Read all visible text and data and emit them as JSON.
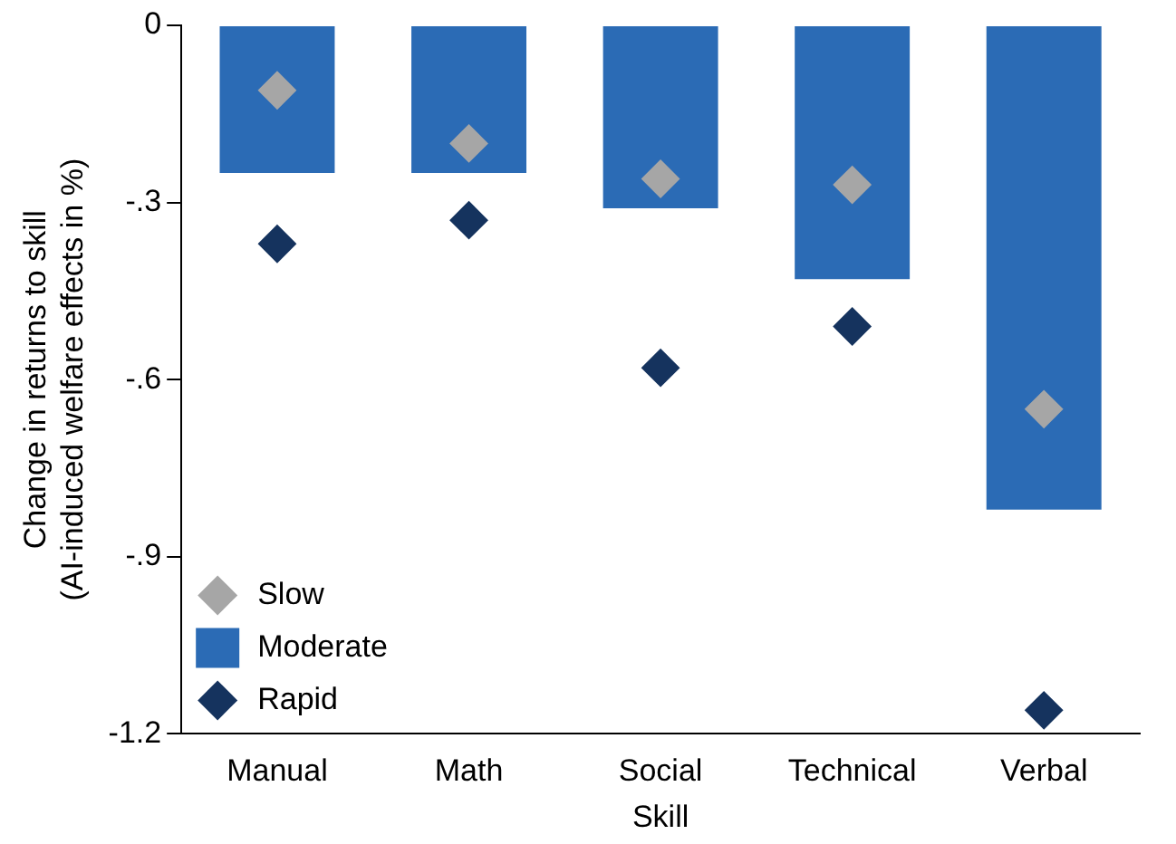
{
  "chart_data": {
    "type": "bar",
    "xlabel": "Skill",
    "ylabel": "Change in returns to skill\n(AI-induced welfare effects in %)",
    "categories": [
      "Manual",
      "Math",
      "Social",
      "Technical",
      "Verbal"
    ],
    "series": [
      {
        "name": "Slow",
        "type": "scatter",
        "color": "#a6a6a6",
        "values": [
          -0.11,
          -0.2,
          -0.26,
          -0.27,
          -0.65
        ]
      },
      {
        "name": "Moderate",
        "color": "#2b6bb5",
        "values": [
          -0.25,
          -0.25,
          -0.31,
          -0.43,
          -0.82
        ]
      },
      {
        "name": "Rapid",
        "type": "scatter",
        "color": "#15335e",
        "values": [
          -0.37,
          -0.33,
          -0.58,
          -0.51,
          -1.16
        ]
      }
    ],
    "ylim": [
      -1.2,
      0
    ],
    "yticks": [
      {
        "value": 0,
        "label": "0"
      },
      {
        "value": -0.3,
        "label": "-.3"
      },
      {
        "value": -0.6,
        "label": "-.6"
      },
      {
        "value": -0.9,
        "label": "-.9"
      },
      {
        "value": -1.2,
        "label": "-1.2"
      }
    ],
    "marker": "diamond",
    "legend": "bottom left",
    "grid": false
  }
}
